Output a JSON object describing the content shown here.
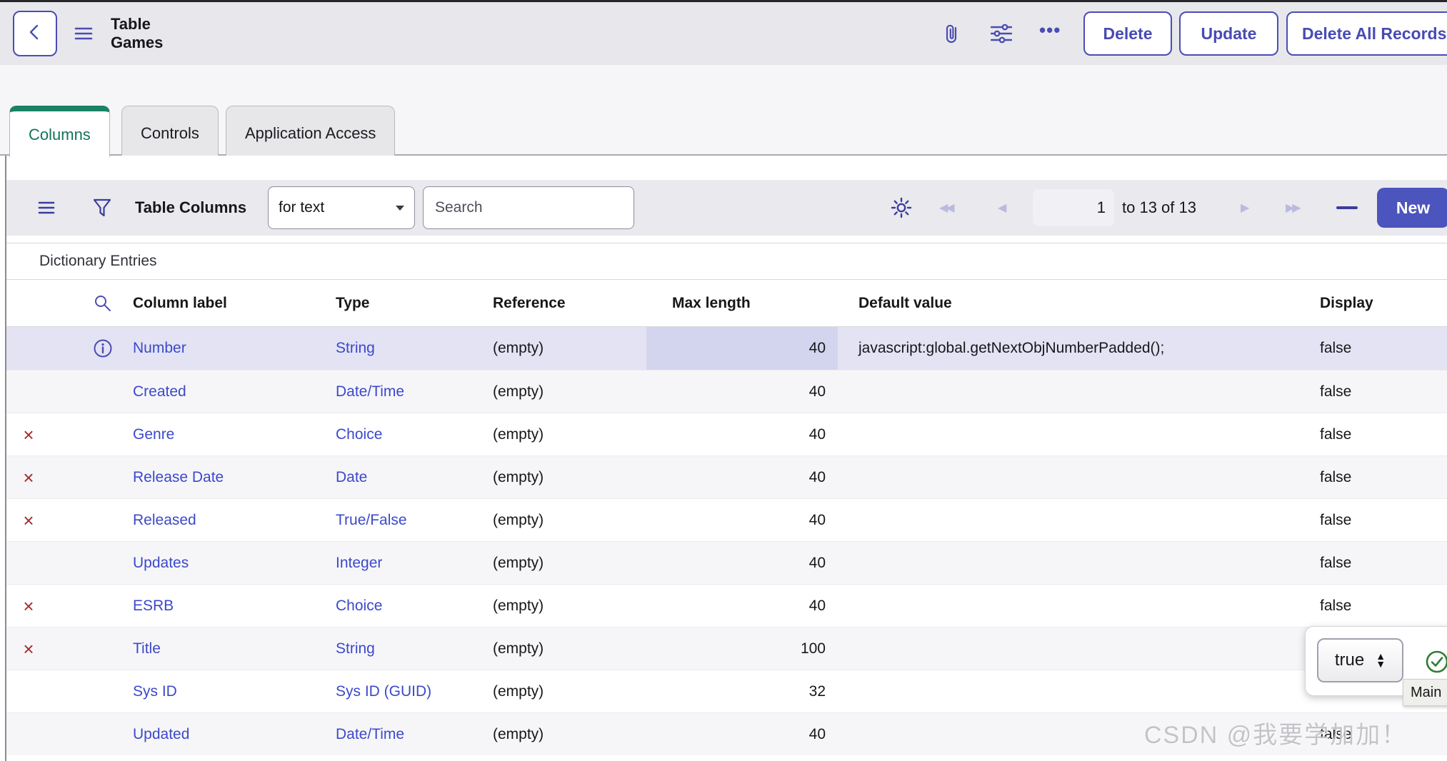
{
  "header": {
    "title": "Table Games",
    "buttons": [
      {
        "label": "Delete"
      },
      {
        "label": "Update"
      },
      {
        "label": "Delete All Records"
      }
    ]
  },
  "tabs": [
    {
      "label": "Columns",
      "active": true
    },
    {
      "label": "Controls",
      "active": false
    },
    {
      "label": "Application Access",
      "active": false
    }
  ],
  "toolbar": {
    "list_title": "Table Columns",
    "search_field_selector": "for text",
    "search_placeholder": "Search",
    "pagination": {
      "page": "1",
      "range_text": "to 13 of 13"
    },
    "new_button": "New"
  },
  "section_title": "Dictionary Entries",
  "table": {
    "headers": [
      "Column label",
      "Type",
      "Reference",
      "Max length",
      "Default value",
      "Display"
    ],
    "rows": [
      {
        "icon": "info",
        "label": "Number",
        "type": "String",
        "reference": "(empty)",
        "max_length": "40",
        "default_value": "javascript:global.getNextObjNumberPadded();",
        "display": "false",
        "selected": true,
        "selected_cell": "max_length"
      },
      {
        "icon": "",
        "label": "Created",
        "type": "Date/Time",
        "reference": "(empty)",
        "max_length": "40",
        "default_value": "",
        "display": "false"
      },
      {
        "icon": "delete",
        "label": "Genre",
        "type": "Choice",
        "reference": "(empty)",
        "max_length": "40",
        "default_value": "",
        "display": "false"
      },
      {
        "icon": "delete",
        "label": "Release Date",
        "type": "Date",
        "reference": "(empty)",
        "max_length": "40",
        "default_value": "",
        "display": "false"
      },
      {
        "icon": "delete",
        "label": "Released",
        "type": "True/False",
        "reference": "(empty)",
        "max_length": "40",
        "default_value": "",
        "display": "false"
      },
      {
        "icon": "",
        "label": "Updates",
        "type": "Integer",
        "reference": "(empty)",
        "max_length": "40",
        "default_value": "",
        "display": "false"
      },
      {
        "icon": "delete",
        "label": "ESRB",
        "type": "Choice",
        "reference": "(empty)",
        "max_length": "40",
        "default_value": "",
        "display": "false"
      },
      {
        "icon": "delete",
        "label": "Title",
        "type": "String",
        "reference": "(empty)",
        "max_length": "100",
        "default_value": "",
        "display": ""
      },
      {
        "icon": "",
        "label": "Sys ID",
        "type": "Sys ID (GUID)",
        "reference": "(empty)",
        "max_length": "32",
        "default_value": "",
        "display": "false"
      },
      {
        "icon": "",
        "label": "Updated",
        "type": "Date/Time",
        "reference": "(empty)",
        "max_length": "40",
        "default_value": "",
        "display": "false"
      }
    ]
  },
  "popup": {
    "value": "true",
    "tooltip": "Main"
  },
  "watermark": "CSDN @我要学加加！",
  "colors": {
    "accent_indigo": "#4a4db3",
    "new_button": "#4c54bd",
    "link": "#3c49c9",
    "tab_active_green": "#1b8266",
    "delete_x_red": "#a42a2b",
    "selected_row": "#e3e3f4",
    "selected_cell": "#d3d4ee",
    "green_check": "#2e7d32"
  }
}
